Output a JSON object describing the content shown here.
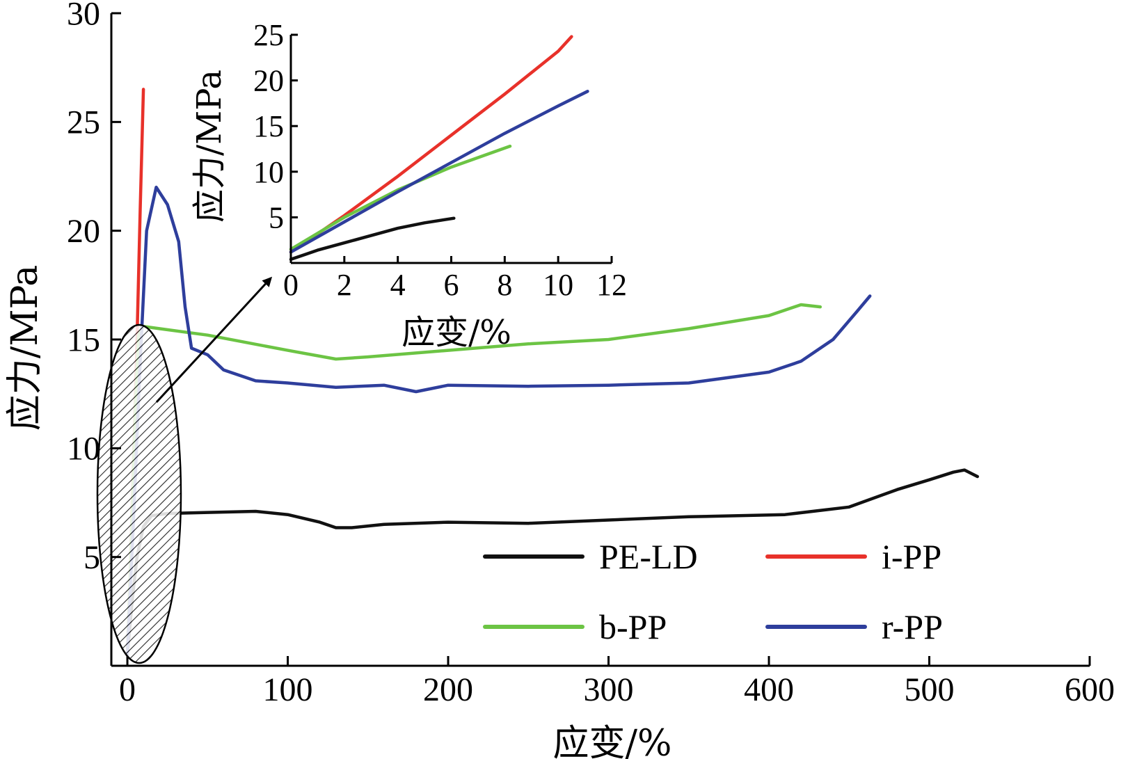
{
  "chart_data": [
    {
      "type": "line",
      "xlabel": "应变/%",
      "ylabel": "应力/MPa",
      "xlim": [
        -10,
        600
      ],
      "ylim": [
        0,
        30
      ],
      "xticks": [
        0,
        100,
        200,
        300,
        400,
        500,
        600
      ],
      "yticks": [
        5,
        10,
        15,
        20,
        25,
        30
      ],
      "xtick_labels": [
        "0",
        "100",
        "200",
        "300",
        "400",
        "500",
        "600"
      ],
      "ytick_labels": [
        "5",
        "10",
        "15",
        "20",
        "25",
        "30"
      ],
      "legend_position": "bottom-right",
      "series": [
        {
          "name": "PE-LD",
          "color": "#111111",
          "points": [
            [
              0,
              0.5
            ],
            [
              3,
              3
            ],
            [
              6,
              5
            ],
            [
              10,
              6.4
            ],
            [
              15,
              6.9
            ],
            [
              25,
              7.0
            ],
            [
              50,
              7.05
            ],
            [
              80,
              7.1
            ],
            [
              100,
              6.95
            ],
            [
              120,
              6.6
            ],
            [
              130,
              6.35
            ],
            [
              140,
              6.35
            ],
            [
              160,
              6.5
            ],
            [
              200,
              6.6
            ],
            [
              250,
              6.55
            ],
            [
              300,
              6.7
            ],
            [
              350,
              6.85
            ],
            [
              410,
              6.95
            ],
            [
              450,
              7.3
            ],
            [
              480,
              8.1
            ],
            [
              500,
              8.55
            ],
            [
              515,
              8.9
            ],
            [
              522,
              9.0
            ],
            [
              530,
              8.7
            ]
          ]
        },
        {
          "name": "i-PP",
          "color": "#e8312a",
          "points": [
            [
              0,
              0.5
            ],
            [
              2,
              5
            ],
            [
              4,
              10
            ],
            [
              6,
              15
            ],
            [
              8,
              21
            ],
            [
              10,
              26.5
            ]
          ]
        },
        {
          "name": "b-PP",
          "color": "#6cc444",
          "points": [
            [
              0,
              0.5
            ],
            [
              3,
              7
            ],
            [
              5,
              12
            ],
            [
              7,
              15.2
            ],
            [
              10,
              15.6
            ],
            [
              20,
              15.5
            ],
            [
              50,
              15.2
            ],
            [
              100,
              14.5
            ],
            [
              130,
              14.1
            ],
            [
              150,
              14.2
            ],
            [
              200,
              14.5
            ],
            [
              250,
              14.8
            ],
            [
              300,
              15.0
            ],
            [
              350,
              15.5
            ],
            [
              400,
              16.1
            ],
            [
              420,
              16.6
            ],
            [
              432,
              16.5
            ]
          ]
        },
        {
          "name": "r-PP",
          "color": "#2e3e9c",
          "points": [
            [
              0,
              0.5
            ],
            [
              4,
              7
            ],
            [
              8,
              14
            ],
            [
              12,
              20
            ],
            [
              18,
              22.0
            ],
            [
              25,
              21.2
            ],
            [
              32,
              19.5
            ],
            [
              36,
              16.5
            ],
            [
              40,
              14.6
            ],
            [
              50,
              14.3
            ],
            [
              60,
              13.6
            ],
            [
              80,
              13.1
            ],
            [
              100,
              13.0
            ],
            [
              130,
              12.8
            ],
            [
              160,
              12.9
            ],
            [
              180,
              12.6
            ],
            [
              200,
              12.9
            ],
            [
              250,
              12.85
            ],
            [
              300,
              12.9
            ],
            [
              350,
              13.0
            ],
            [
              400,
              13.5
            ],
            [
              420,
              14.0
            ],
            [
              440,
              15.0
            ],
            [
              455,
              16.3
            ],
            [
              463,
              17.0
            ]
          ]
        }
      ]
    },
    {
      "type": "line",
      "xlabel": "应变/%",
      "ylabel": "应力/MPa",
      "xlim": [
        0,
        12
      ],
      "ylim": [
        0,
        25
      ],
      "xticks": [
        0,
        2,
        4,
        6,
        8,
        10,
        12
      ],
      "yticks": [
        5,
        10,
        15,
        20,
        25
      ],
      "xtick_labels": [
        "0",
        "2",
        "4",
        "6",
        "8",
        "10",
        "12"
      ],
      "ytick_labels": [
        "5",
        "10",
        "15",
        "20",
        "25"
      ],
      "series": [
        {
          "name": "PE-LD",
          "color": "#111111",
          "points": [
            [
              0,
              0.4
            ],
            [
              0.5,
              0.9
            ],
            [
              1,
              1.4
            ],
            [
              2,
              2.2
            ],
            [
              3,
              3.0
            ],
            [
              4,
              3.8
            ],
            [
              5,
              4.4
            ],
            [
              6.1,
              4.9
            ]
          ]
        },
        {
          "name": "i-PP",
          "color": "#e8312a",
          "points": [
            [
              0,
              1.2
            ],
            [
              2,
              5.2
            ],
            [
              4,
              9.5
            ],
            [
              6,
              14.0
            ],
            [
              8,
              18.5
            ],
            [
              10,
              23.2
            ],
            [
              10.5,
              24.8
            ]
          ]
        },
        {
          "name": "b-PP",
          "color": "#6cc444",
          "points": [
            [
              0,
              1.5
            ],
            [
              2,
              5.0
            ],
            [
              4,
              8.0
            ],
            [
              6,
              10.5
            ],
            [
              8.2,
              12.8
            ]
          ]
        },
        {
          "name": "r-PP",
          "color": "#2e3e9c",
          "points": [
            [
              0,
              1.2
            ],
            [
              2,
              4.5
            ],
            [
              4,
              7.8
            ],
            [
              6,
              11.0
            ],
            [
              8,
              14.2
            ],
            [
              10,
              17.2
            ],
            [
              11.1,
              18.8
            ]
          ]
        }
      ]
    }
  ]
}
